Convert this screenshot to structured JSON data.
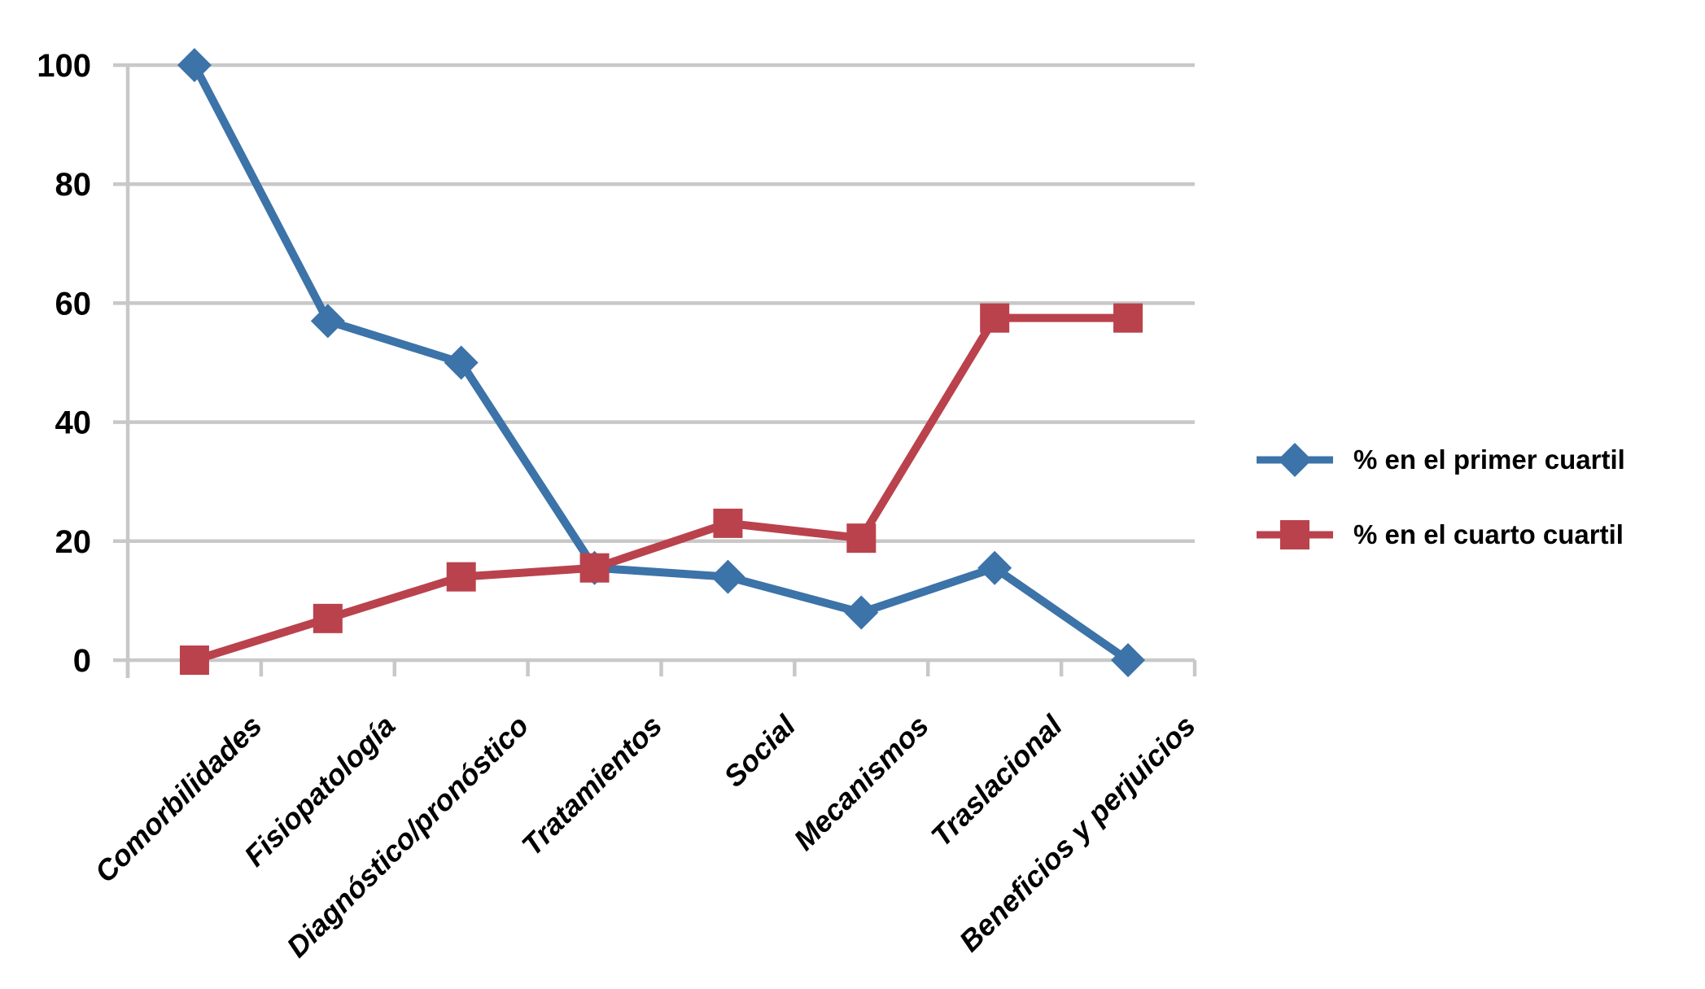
{
  "page": {
    "background": "#FFFFFF"
  },
  "chart_data": {
    "type": "line",
    "title": "",
    "categories": [
      "Comorbilidades",
      "Fisiopatología",
      "Diagnóstico/pronóstico",
      "Tratamientos",
      "Social",
      "Mecanismos",
      "Traslacional",
      "Beneficios y perjuicios"
    ],
    "series": [
      {
        "name": "% en el primer cuartil",
        "marker": "diamond",
        "color": "#3C73A8",
        "values": [
          100,
          57,
          50,
          15.5,
          14,
          8,
          15.5,
          0
        ]
      },
      {
        "name": "% en el cuarto cuartil",
        "marker": "square",
        "color": "#BA424C",
        "values": [
          0,
          7,
          14,
          15.5,
          23,
          20.5,
          57.5,
          57.5
        ]
      }
    ],
    "xlabel": "",
    "ylabel": "",
    "y_axis": {
      "min": 0,
      "max": 100,
      "ticks": [
        0,
        20,
        40,
        60,
        80,
        100
      ]
    },
    "grid": true,
    "legend_position": "right-middle"
  },
  "palette": {
    "grid_color": "#C8C8C8",
    "axis_color": "#C8C8C8",
    "text_color": "#000000",
    "background": "#FFFFFF"
  }
}
